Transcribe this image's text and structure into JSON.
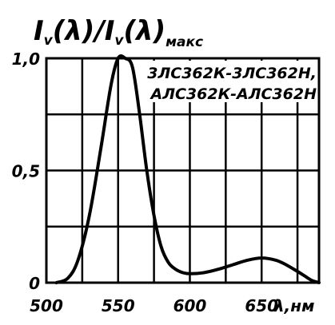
{
  "chart_data": {
    "type": "line",
    "ylabel": {
      "part1": "I",
      "part1_sub": "v",
      "part2": "(λ)/I",
      "part3_sub": "v",
      "part4": "(λ)",
      "part4_sub": "макс"
    },
    "xlabel": "λ,нм",
    "xlim": [
      500,
      690
    ],
    "ylim": [
      0,
      1.0
    ],
    "xticks": [
      {
        "value": 500,
        "label": "500"
      },
      {
        "value": 550,
        "label": "550"
      },
      {
        "value": 600,
        "label": "600"
      },
      {
        "value": 650,
        "label": "650"
      }
    ],
    "yticks": [
      {
        "value": 0,
        "label": "0"
      },
      {
        "value": 0.5,
        "label": "0,5"
      },
      {
        "value": 1.0,
        "label": "1,0"
      }
    ],
    "grid": true,
    "series": [
      {
        "name": "3ЛС362К-3ЛС362Н, АЛС362К-АЛС362Н",
        "x": [
          507,
          515,
          522,
          530,
          538,
          545,
          550,
          555,
          560,
          565,
          570,
          575,
          580,
          585,
          590,
          595,
          600,
          610,
          620,
          630,
          640,
          650,
          660,
          667,
          675,
          680,
          685,
          690
        ],
        "y": [
          0.0,
          0.02,
          0.1,
          0.3,
          0.6,
          0.88,
          1.0,
          1.0,
          0.96,
          0.75,
          0.5,
          0.3,
          0.16,
          0.09,
          0.06,
          0.045,
          0.04,
          0.045,
          0.06,
          0.08,
          0.1,
          0.11,
          0.1,
          0.08,
          0.05,
          0.03,
          0.01,
          0.0
        ]
      }
    ],
    "legend": {
      "placement": "top-right",
      "lines": [
        "3ЛС362К-3ЛС362Н,",
        "АЛС362К-АЛС362Н"
      ]
    }
  }
}
